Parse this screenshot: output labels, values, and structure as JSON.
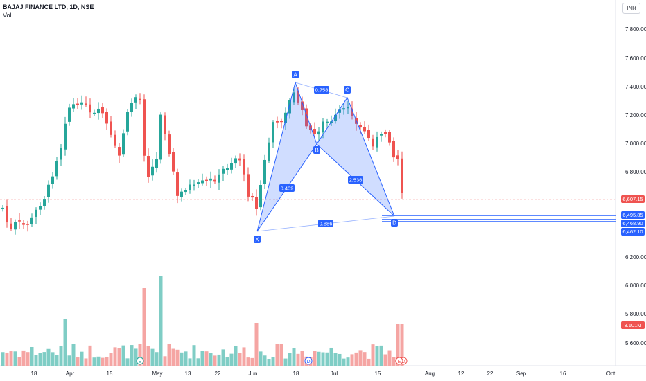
{
  "legend": {
    "title": "BAJAJ FINANCE LTD, 1D, NSE",
    "volume_label": "Vol"
  },
  "currency": "INR",
  "price_axis": [
    "7,800.00",
    "7,600.00",
    "7,400.00",
    "7,200.00",
    "7,000.00",
    "6,800.00",
    "6,200.00",
    "6,000.00",
    "5,800.00",
    "5,600.00"
  ],
  "time_axis": [
    "18",
    "Apr",
    "15",
    "May",
    "13",
    "22",
    "Jun",
    "18",
    "Jul",
    "15",
    "Aug",
    "12",
    "22",
    "Sep",
    "16",
    "Oct"
  ],
  "tags": {
    "last_price": "6,607.15",
    "level1": "6,495.85",
    "level2": "6,468.90",
    "level3": "6,462.10",
    "volume": "3.101M"
  },
  "pattern": {
    "points": [
      "X",
      "A",
      "B",
      "C",
      "D"
    ],
    "ratios": {
      "xa_b": "0.758",
      "xb": "0.409",
      "bc_d": "2.536",
      "xd": "0.886"
    }
  },
  "event_markers": [
    "E",
    "D",
    "D",
    "E"
  ],
  "colors": {
    "up": "#26a69a",
    "down": "#ef5350",
    "up_vol": "#7fcdc5",
    "down_vol": "#f5a5a3",
    "pattern_line": "#2962ff",
    "pattern_fill": "#2962ff",
    "axis_text": "#131722"
  }
}
